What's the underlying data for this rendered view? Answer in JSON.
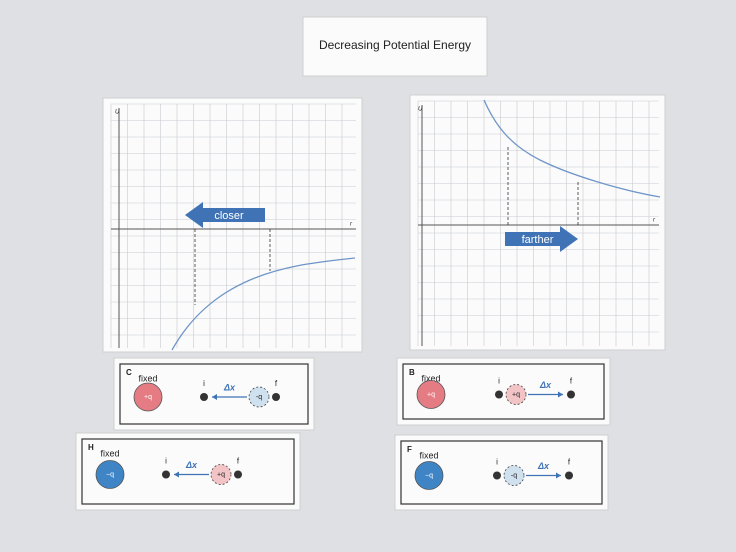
{
  "title": "Decreasing Potential Energy",
  "graphs": [
    {
      "y_axis": "U",
      "x_axis": "r",
      "arrow": "closer"
    },
    {
      "y_axis": "U",
      "x_axis": "r",
      "arrow": "farther"
    }
  ],
  "cards": [
    {
      "letter": "C",
      "fixed_label": "fixed",
      "fixed_charge": "+q",
      "start": "i",
      "displacement": "Δx",
      "moving_charge": "-q",
      "end": "f"
    },
    {
      "letter": "B",
      "fixed_label": "fixed",
      "fixed_charge": "+q",
      "start": "i",
      "displacement": "Δx",
      "moving_charge": "+q",
      "end": "f"
    },
    {
      "letter": "H",
      "fixed_label": "fixed",
      "fixed_charge": "−q",
      "start": "i",
      "displacement": "Δx",
      "moving_charge": "+q",
      "end": "f"
    },
    {
      "letter": "F",
      "fixed_label": "fixed",
      "fixed_charge": "−q",
      "start": "i",
      "displacement": "Δx",
      "moving_charge": "-q",
      "end": "f"
    }
  ]
}
